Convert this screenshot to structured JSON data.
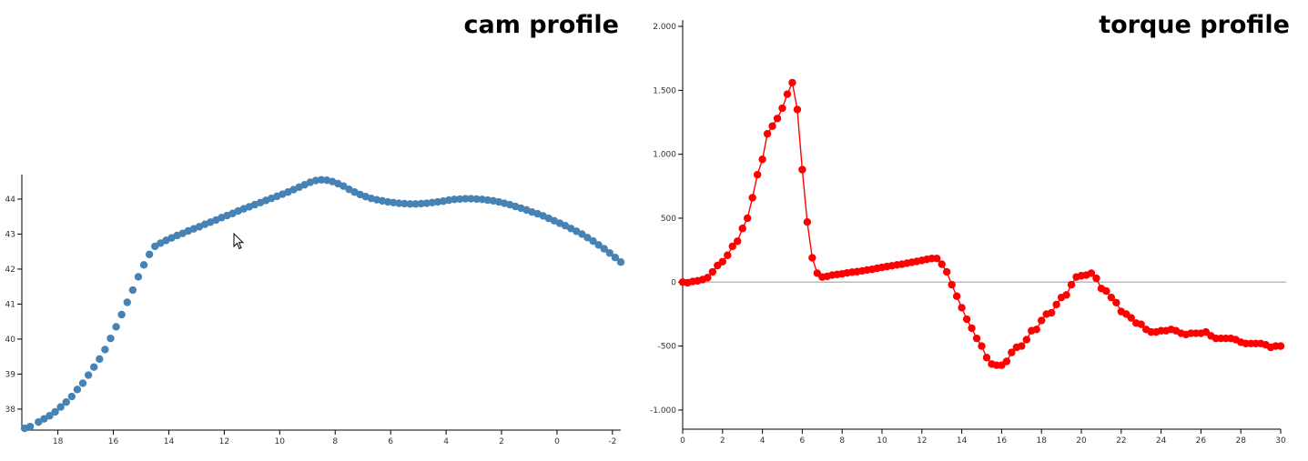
{
  "chart_data": [
    {
      "type": "scatter",
      "title": "cam profile",
      "xlim": [
        19.3,
        -2.3
      ],
      "ylim": [
        37.4,
        44.7
      ],
      "xticks": [
        18,
        16,
        14,
        12,
        10,
        8,
        6,
        4,
        2,
        0,
        -2
      ],
      "yticks": [
        38,
        39,
        40,
        41,
        42,
        43,
        44
      ],
      "grid": false,
      "series": [
        {
          "color": "#4682b4",
          "points": [
            [
              19.2,
              37.45
            ],
            [
              19.0,
              37.5
            ],
            [
              18.7,
              37.63
            ],
            [
              18.5,
              37.72
            ],
            [
              18.3,
              37.81
            ],
            [
              18.1,
              37.92
            ],
            [
              17.9,
              38.06
            ],
            [
              17.7,
              38.2
            ],
            [
              17.5,
              38.36
            ],
            [
              17.3,
              38.56
            ],
            [
              17.1,
              38.74
            ],
            [
              16.9,
              38.97
            ],
            [
              16.7,
              39.2
            ],
            [
              16.5,
              39.43
            ],
            [
              16.3,
              39.7
            ],
            [
              16.1,
              40.02
            ],
            [
              15.9,
              40.35
            ],
            [
              15.7,
              40.7
            ],
            [
              15.5,
              41.05
            ],
            [
              15.3,
              41.4
            ],
            [
              15.1,
              41.78
            ],
            [
              14.9,
              42.12
            ],
            [
              14.7,
              42.42
            ],
            [
              14.5,
              42.65
            ],
            [
              14.3,
              42.74
            ],
            [
              14.1,
              42.82
            ],
            [
              13.9,
              42.89
            ],
            [
              13.7,
              42.96
            ],
            [
              13.5,
              43.02
            ],
            [
              13.3,
              43.09
            ],
            [
              13.1,
              43.15
            ],
            [
              12.9,
              43.21
            ],
            [
              12.7,
              43.28
            ],
            [
              12.5,
              43.34
            ],
            [
              12.3,
              43.4
            ],
            [
              12.1,
              43.47
            ],
            [
              11.9,
              43.53
            ],
            [
              11.7,
              43.59
            ],
            [
              11.5,
              43.66
            ],
            [
              11.3,
              43.72
            ],
            [
              11.1,
              43.78
            ],
            [
              10.9,
              43.84
            ],
            [
              10.7,
              43.9
            ],
            [
              10.5,
              43.96
            ],
            [
              10.3,
              44.02
            ],
            [
              10.1,
              44.08
            ],
            [
              9.9,
              44.14
            ],
            [
              9.7,
              44.2
            ],
            [
              9.5,
              44.27
            ],
            [
              9.3,
              44.34
            ],
            [
              9.1,
              44.41
            ],
            [
              8.9,
              44.48
            ],
            [
              8.7,
              44.53
            ],
            [
              8.5,
              44.55
            ],
            [
              8.3,
              44.54
            ],
            [
              8.1,
              44.5
            ],
            [
              7.9,
              44.44
            ],
            [
              7.7,
              44.37
            ],
            [
              7.5,
              44.28
            ],
            [
              7.3,
              44.2
            ],
            [
              7.1,
              44.13
            ],
            [
              6.9,
              44.07
            ],
            [
              6.7,
              44.02
            ],
            [
              6.5,
              43.98
            ],
            [
              6.3,
              43.95
            ],
            [
              6.1,
              43.92
            ],
            [
              5.9,
              43.9
            ],
            [
              5.7,
              43.88
            ],
            [
              5.5,
              43.87
            ],
            [
              5.3,
              43.86
            ],
            [
              5.1,
              43.86
            ],
            [
              4.9,
              43.87
            ],
            [
              4.7,
              43.88
            ],
            [
              4.5,
              43.9
            ],
            [
              4.3,
              43.92
            ],
            [
              4.1,
              43.94
            ],
            [
              3.9,
              43.97
            ],
            [
              3.7,
              43.99
            ],
            [
              3.5,
              44.0
            ],
            [
              3.3,
              44.01
            ],
            [
              3.1,
              44.01
            ],
            [
              2.9,
              44.0
            ],
            [
              2.7,
              43.99
            ],
            [
              2.5,
              43.97
            ],
            [
              2.3,
              43.95
            ],
            [
              2.1,
              43.92
            ],
            [
              1.9,
              43.88
            ],
            [
              1.7,
              43.84
            ],
            [
              1.5,
              43.79
            ],
            [
              1.3,
              43.74
            ],
            [
              1.1,
              43.69
            ],
            [
              0.9,
              43.63
            ],
            [
              0.7,
              43.58
            ],
            [
              0.5,
              43.52
            ],
            [
              0.3,
              43.45
            ],
            [
              0.1,
              43.38
            ],
            [
              -0.1,
              43.31
            ],
            [
              -0.3,
              43.24
            ],
            [
              -0.5,
              43.16
            ],
            [
              -0.7,
              43.08
            ],
            [
              -0.9,
              43.0
            ],
            [
              -1.1,
              42.9
            ],
            [
              -1.3,
              42.8
            ],
            [
              -1.5,
              42.69
            ],
            [
              -1.7,
              42.58
            ],
            [
              -1.9,
              42.46
            ],
            [
              -2.1,
              42.33
            ],
            [
              -2.3,
              42.2
            ]
          ]
        }
      ]
    },
    {
      "type": "line",
      "title": "torque profile",
      "xlim": [
        0,
        30
      ],
      "ylim": [
        -1150,
        2050
      ],
      "xticks": [
        0,
        2,
        4,
        6,
        8,
        10,
        12,
        14,
        16,
        18,
        20,
        22,
        24,
        26,
        28,
        30
      ],
      "yticks": [
        2000,
        1500,
        1000,
        500,
        0,
        -500,
        -1000
      ],
      "ytick_labels": [
        "2.000",
        "1.500",
        "1.000",
        "500",
        "0",
        "-500",
        "-1.000"
      ],
      "zero_line": true,
      "grid": false,
      "series": [
        {
          "color": "#ff0000",
          "points": [
            [
              0.0,
              0
            ],
            [
              0.25,
              -5
            ],
            [
              0.5,
              5
            ],
            [
              0.75,
              10
            ],
            [
              1.0,
              20
            ],
            [
              1.25,
              35
            ],
            [
              1.5,
              80
            ],
            [
              1.75,
              130
            ],
            [
              2.0,
              160
            ],
            [
              2.25,
              210
            ],
            [
              2.5,
              280
            ],
            [
              2.75,
              320
            ],
            [
              3.0,
              420
            ],
            [
              3.25,
              500
            ],
            [
              3.5,
              660
            ],
            [
              3.75,
              840
            ],
            [
              4.0,
              960
            ],
            [
              4.25,
              1160
            ],
            [
              4.5,
              1220
            ],
            [
              4.75,
              1280
            ],
            [
              5.0,
              1360
            ],
            [
              5.25,
              1470
            ],
            [
              5.5,
              1560
            ],
            [
              5.75,
              1350
            ],
            [
              6.0,
              880
            ],
            [
              6.25,
              470
            ],
            [
              6.5,
              190
            ],
            [
              6.75,
              70
            ],
            [
              7.0,
              40
            ],
            [
              7.25,
              45
            ],
            [
              7.5,
              55
            ],
            [
              7.75,
              60
            ],
            [
              8.0,
              65
            ],
            [
              8.25,
              72
            ],
            [
              8.5,
              78
            ],
            [
              8.75,
              82
            ],
            [
              9.0,
              88
            ],
            [
              9.25,
              95
            ],
            [
              9.5,
              100
            ],
            [
              9.75,
              108
            ],
            [
              10.0,
              115
            ],
            [
              10.25,
              122
            ],
            [
              10.5,
              128
            ],
            [
              10.75,
              135
            ],
            [
              11.0,
              140
            ],
            [
              11.25,
              148
            ],
            [
              11.5,
              155
            ],
            [
              11.75,
              162
            ],
            [
              12.0,
              170
            ],
            [
              12.25,
              178
            ],
            [
              12.5,
              185
            ],
            [
              12.75,
              185
            ],
            [
              13.0,
              140
            ],
            [
              13.25,
              80
            ],
            [
              13.5,
              -20
            ],
            [
              13.75,
              -110
            ],
            [
              14.0,
              -200
            ],
            [
              14.25,
              -290
            ],
            [
              14.5,
              -360
            ],
            [
              14.75,
              -440
            ],
            [
              15.0,
              -500
            ],
            [
              15.25,
              -590
            ],
            [
              15.5,
              -640
            ],
            [
              15.75,
              -650
            ],
            [
              16.0,
              -650
            ],
            [
              16.25,
              -620
            ],
            [
              16.5,
              -550
            ],
            [
              16.75,
              -510
            ],
            [
              17.0,
              -500
            ],
            [
              17.25,
              -450
            ],
            [
              17.5,
              -380
            ],
            [
              17.75,
              -370
            ],
            [
              18.0,
              -300
            ],
            [
              18.25,
              -250
            ],
            [
              18.5,
              -240
            ],
            [
              18.75,
              -175
            ],
            [
              19.0,
              -120
            ],
            [
              19.25,
              -100
            ],
            [
              19.5,
              -20
            ],
            [
              19.75,
              40
            ],
            [
              20.0,
              50
            ],
            [
              20.25,
              55
            ],
            [
              20.5,
              70
            ],
            [
              20.75,
              30
            ],
            [
              21.0,
              -50
            ],
            [
              21.25,
              -70
            ],
            [
              21.5,
              -120
            ],
            [
              21.75,
              -160
            ],
            [
              22.0,
              -230
            ],
            [
              22.25,
              -250
            ],
            [
              22.5,
              -280
            ],
            [
              22.75,
              -320
            ],
            [
              23.0,
              -330
            ],
            [
              23.25,
              -370
            ],
            [
              23.5,
              -390
            ],
            [
              23.75,
              -390
            ],
            [
              24.0,
              -380
            ],
            [
              24.25,
              -380
            ],
            [
              24.5,
              -370
            ],
            [
              24.75,
              -380
            ],
            [
              25.0,
              -400
            ],
            [
              25.25,
              -410
            ],
            [
              25.5,
              -400
            ],
            [
              25.75,
              -400
            ],
            [
              26.0,
              -400
            ],
            [
              26.25,
              -390
            ],
            [
              26.5,
              -420
            ],
            [
              26.75,
              -440
            ],
            [
              27.0,
              -440
            ],
            [
              27.25,
              -440
            ],
            [
              27.5,
              -440
            ],
            [
              27.75,
              -450
            ],
            [
              28.0,
              -470
            ],
            [
              28.25,
              -480
            ],
            [
              28.5,
              -480
            ],
            [
              28.75,
              -480
            ],
            [
              29.0,
              -480
            ],
            [
              29.25,
              -490
            ],
            [
              29.5,
              -510
            ],
            [
              29.75,
              -500
            ],
            [
              30.0,
              -500
            ]
          ]
        }
      ]
    }
  ]
}
